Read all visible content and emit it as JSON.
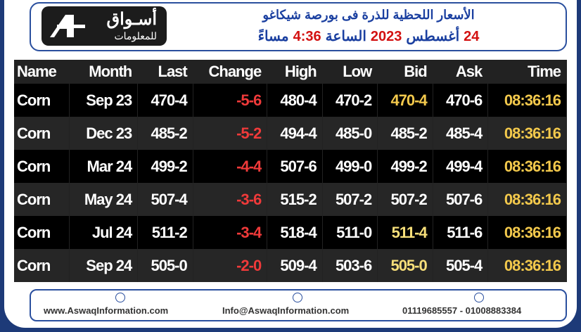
{
  "header": {
    "logo_title": "أسـواق",
    "logo_subtitle": "للمعلومات",
    "title": "الأسعار اللحظية للذرة فى بورصة شيكاغو",
    "subtitle_parts": [
      {
        "text": "24",
        "color": "#d31111"
      },
      {
        "text": "أغسطس",
        "color": "#1a3fa0"
      },
      {
        "text": "2023",
        "color": "#d31111"
      },
      {
        "text": "الساعة",
        "color": "#1a3fa0"
      },
      {
        "text": "4:36",
        "color": "#d31111"
      },
      {
        "text": "مساءً",
        "color": "#1a3fa0"
      }
    ]
  },
  "table": {
    "columns": [
      "Name",
      "Month",
      "Last",
      "Change",
      "High",
      "Low",
      "Bid",
      "Ask",
      "Time"
    ],
    "rows": [
      [
        "Corn",
        "Sep 23",
        "470-4",
        "-5-6",
        "480-4",
        "470-2",
        "470-4",
        "470-6",
        "08:36:16"
      ],
      [
        "Corn",
        "Dec 23",
        "485-2",
        "-5-2",
        "494-4",
        "485-0",
        "485-2",
        "485-4",
        "08:36:16"
      ],
      [
        "Corn",
        "Mar 24",
        "499-2",
        "-4-4",
        "507-6",
        "499-0",
        "499-2",
        "499-4",
        "08:36:16"
      ],
      [
        "Corn",
        "May 24",
        "507-4",
        "-3-6",
        "515-2",
        "507-2",
        "507-2",
        "507-6",
        "08:36:16"
      ],
      [
        "Corn",
        "Jul 24",
        "511-2",
        "-3-4",
        "518-4",
        "511-0",
        "511-4",
        "511-6",
        "08:36:16"
      ],
      [
        "Corn",
        "Sep 24",
        "505-0",
        "-2-0",
        "509-4",
        "503-6",
        "505-0",
        "505-4",
        "08:36:16"
      ]
    ],
    "bid_colors": [
      "#f3c94c",
      "#ffffff",
      "#ffffff",
      "#ffffff",
      "#f7df7a",
      "#f7df7a"
    ]
  },
  "footer": {
    "website": "www.AswaqInformation.com",
    "email": "Info@AswaqInformation.com",
    "phones": "01119685557 - 01008883384"
  }
}
